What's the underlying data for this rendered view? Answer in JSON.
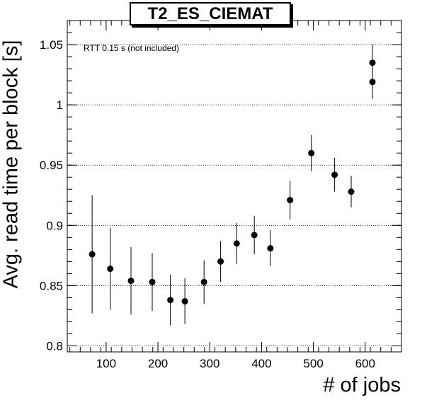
{
  "chart_data": {
    "type": "scatter",
    "title": "T2_ES_CIEMAT",
    "xlabel": "# of jobs",
    "ylabel": "Avg. read time per block [s]",
    "annotation": "RTT 0.15 s (not included)",
    "xlim": [
      25,
      670
    ],
    "ylim": [
      0.795,
      1.07
    ],
    "x_ticks": [
      100,
      200,
      300,
      400,
      500,
      600
    ],
    "y_ticks": [
      0.8,
      0.85,
      0.9,
      0.95,
      1,
      1.05
    ],
    "y_tick_labels": [
      "0.8",
      "0.85",
      "0.9",
      "0.95",
      "1",
      "1.05"
    ],
    "grid": "horizontal-dotted",
    "series": [
      {
        "points": [
          {
            "x": 73,
            "y": 0.876,
            "err": 0.049
          },
          {
            "x": 108,
            "y": 0.864,
            "err": 0.034
          },
          {
            "x": 148,
            "y": 0.854,
            "err": 0.028
          },
          {
            "x": 189,
            "y": 0.853,
            "err": 0.024
          },
          {
            "x": 224,
            "y": 0.838,
            "err": 0.021
          },
          {
            "x": 252,
            "y": 0.837,
            "err": 0.019
          },
          {
            "x": 289,
            "y": 0.853,
            "err": 0.018
          },
          {
            "x": 321,
            "y": 0.87,
            "err": 0.017
          },
          {
            "x": 352,
            "y": 0.885,
            "err": 0.017
          },
          {
            "x": 386,
            "y": 0.892,
            "err": 0.016
          },
          {
            "x": 417,
            "y": 0.881,
            "err": 0.015
          },
          {
            "x": 455,
            "y": 0.921,
            "err": 0.016
          },
          {
            "x": 496,
            "y": 0.96,
            "err": 0.015
          },
          {
            "x": 541,
            "y": 0.942,
            "err": 0.014
          },
          {
            "x": 573,
            "y": 0.928,
            "err": 0.013
          },
          {
            "x": 614,
            "y": 1.035,
            "err": 0.015
          },
          {
            "x": 614,
            "y": 1.019,
            "err": 0.014
          }
        ]
      }
    ]
  }
}
